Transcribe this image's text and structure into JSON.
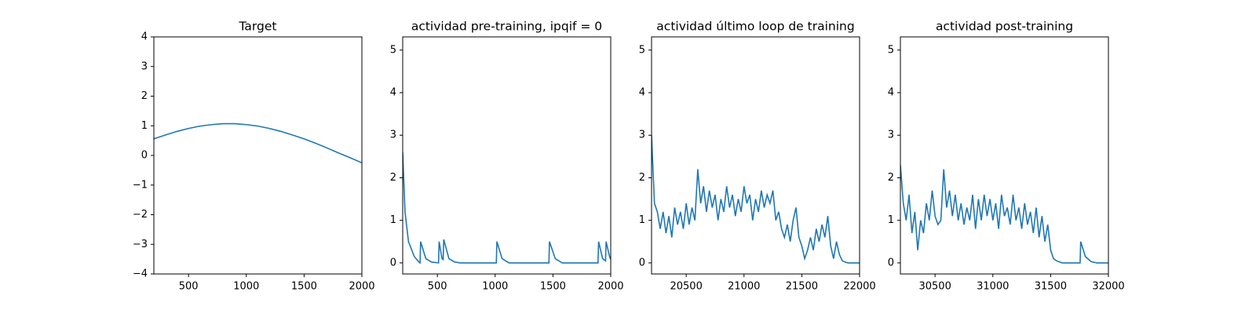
{
  "chart_data": [
    {
      "type": "line",
      "title": "Target",
      "color": "#1f77b4",
      "x": [
        200,
        300,
        400,
        500,
        600,
        700,
        800,
        900,
        1000,
        1100,
        1200,
        1300,
        1400,
        1500,
        1600,
        1700,
        1800,
        1900,
        2000
      ],
      "values": [
        0.56,
        0.69,
        0.81,
        0.91,
        0.99,
        1.04,
        1.07,
        1.07,
        1.04,
        0.99,
        0.91,
        0.81,
        0.69,
        0.56,
        0.41,
        0.25,
        0.08,
        -0.08,
        -0.25
      ],
      "xlim": [
        200,
        2000
      ],
      "xticks": [
        500,
        1000,
        1500,
        2000
      ],
      "ylim": [
        -4,
        4
      ],
      "yticks": [
        {
          "value": -4,
          "label": "−4"
        },
        {
          "value": -3,
          "label": "−3"
        },
        {
          "value": -2,
          "label": "−2"
        },
        {
          "value": -1,
          "label": "−1"
        },
        0,
        1,
        2,
        3,
        4
      ]
    },
    {
      "type": "line",
      "title": "actividad pre-training, ipqif = 0",
      "color": "#1f77b4",
      "x": [
        200,
        220,
        250,
        300,
        340,
        350,
        355,
        400,
        450,
        510,
        515,
        540,
        550,
        555,
        600,
        650,
        700,
        1010,
        1015,
        1060,
        1120,
        1465,
        1470,
        1520,
        1580,
        1890,
        1895,
        1930,
        1955,
        1960,
        1990,
        2000
      ],
      "values": [
        2.6,
        1.2,
        0.5,
        0.15,
        0.02,
        0.0,
        0.5,
        0.1,
        0.02,
        0.0,
        0.5,
        0.1,
        0.08,
        0.55,
        0.1,
        0.02,
        0.0,
        0.0,
        0.5,
        0.1,
        0.0,
        0.0,
        0.5,
        0.1,
        0.0,
        0.0,
        0.5,
        0.1,
        0.05,
        0.5,
        0.15,
        0.08
      ],
      "xlim": [
        200,
        2000
      ],
      "xticks": [
        500,
        1000,
        1500,
        2000
      ],
      "ylim": [
        -0.26,
        5.31
      ],
      "yticks": [
        0,
        1,
        2,
        3,
        4,
        5
      ]
    },
    {
      "type": "line",
      "title": "actividad último loop de training",
      "color": "#1f77b4",
      "x": [
        20200,
        20225,
        20250,
        20275,
        20300,
        20325,
        20350,
        20375,
        20400,
        20425,
        20450,
        20475,
        20500,
        20525,
        20550,
        20575,
        20600,
        20625,
        20650,
        20675,
        20700,
        20725,
        20750,
        20775,
        20800,
        20825,
        20850,
        20875,
        20900,
        20925,
        20950,
        20975,
        21000,
        21025,
        21050,
        21075,
        21100,
        21125,
        21150,
        21175,
        21200,
        21225,
        21250,
        21275,
        21300,
        21325,
        21350,
        21375,
        21400,
        21425,
        21450,
        21475,
        21500,
        21525,
        21550,
        21575,
        21600,
        21625,
        21650,
        21675,
        21700,
        21725,
        21750,
        21775,
        21800,
        21825,
        21850,
        21875,
        21900,
        21950,
        22000
      ],
      "values": [
        3.0,
        1.4,
        1.2,
        0.8,
        1.2,
        0.7,
        1.1,
        0.6,
        1.3,
        0.9,
        1.2,
        0.8,
        1.4,
        0.9,
        1.3,
        1.0,
        2.2,
        1.4,
        1.8,
        1.2,
        1.7,
        1.3,
        1.6,
        1.0,
        1.5,
        1.2,
        1.8,
        1.3,
        1.6,
        1.1,
        1.5,
        1.2,
        1.8,
        1.4,
        1.6,
        1.0,
        1.5,
        1.2,
        1.7,
        1.3,
        1.6,
        1.4,
        1.7,
        1.0,
        1.2,
        0.8,
        0.6,
        0.9,
        0.5,
        1.0,
        1.3,
        0.6,
        0.4,
        0.1,
        0.3,
        0.6,
        0.3,
        0.8,
        0.5,
        0.9,
        0.6,
        1.1,
        0.4,
        0.1,
        0.5,
        0.2,
        0.05,
        0.02,
        0,
        0,
        0
      ],
      "xlim": [
        20200,
        22000
      ],
      "xticks": [
        20500,
        21000,
        21500,
        22000
      ],
      "ylim": [
        -0.26,
        5.31
      ],
      "yticks": [
        0,
        1,
        2,
        3,
        4,
        5
      ]
    },
    {
      "type": "line",
      "title": "actividad post-training",
      "color": "#1f77b4",
      "x": [
        30200,
        30225,
        30250,
        30275,
        30300,
        30325,
        30350,
        30375,
        30400,
        30425,
        30450,
        30475,
        30500,
        30525,
        30550,
        30575,
        30600,
        30625,
        30650,
        30675,
        30700,
        30725,
        30750,
        30775,
        30800,
        30825,
        30850,
        30875,
        30900,
        30925,
        30950,
        30975,
        31000,
        31025,
        31050,
        31075,
        31100,
        31125,
        31150,
        31175,
        31200,
        31225,
        31250,
        31275,
        31300,
        31325,
        31350,
        31375,
        31400,
        31425,
        31450,
        31475,
        31500,
        31525,
        31550,
        31600,
        31700,
        31755,
        31760,
        31800,
        31850,
        31900,
        32000
      ],
      "values": [
        2.3,
        1.4,
        1.0,
        1.6,
        0.7,
        1.2,
        0.3,
        1.0,
        0.7,
        1.4,
        1.0,
        1.7,
        1.1,
        0.9,
        1.0,
        2.2,
        1.3,
        1.7,
        1.1,
        1.6,
        1.0,
        1.4,
        0.9,
        1.3,
        1.0,
        1.6,
        0.8,
        1.5,
        1.0,
        1.6,
        1.1,
        1.5,
        1.0,
        1.4,
        0.8,
        1.6,
        1.1,
        1.3,
        0.9,
        1.6,
        1.0,
        1.3,
        0.8,
        1.4,
        0.9,
        1.2,
        0.7,
        1.3,
        0.6,
        1.1,
        0.5,
        0.9,
        0.3,
        0.1,
        0.05,
        0,
        0,
        0,
        0.5,
        0.15,
        0.03,
        0,
        0
      ],
      "xlim": [
        30200,
        32000
      ],
      "xticks": [
        30500,
        31000,
        31500,
        32000
      ],
      "ylim": [
        -0.26,
        5.31
      ],
      "yticks": [
        0,
        1,
        2,
        3,
        4,
        5
      ]
    }
  ]
}
